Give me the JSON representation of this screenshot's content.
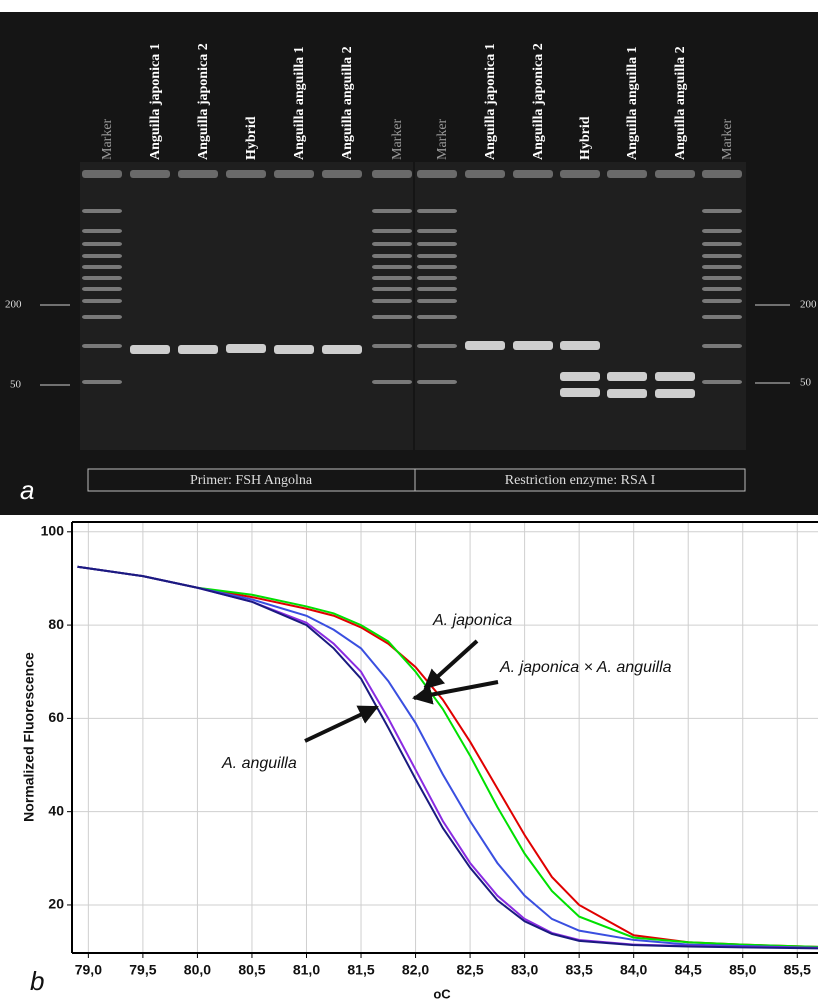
{
  "gel": {
    "lanes": [
      "Marker",
      "Anguilla japonica 1",
      "Anguilla japonica 2",
      "Hybrid",
      "Anguilla anguilla 1",
      "Anguilla anguilla 2",
      "Marker",
      "Marker",
      "Anguilla japonica 1",
      "Anguilla japonica 2",
      "Hybrid",
      "Anguilla anguilla 1",
      "Anguilla anguilla 2",
      "Marker"
    ],
    "size_labels": [
      "200",
      "50"
    ],
    "captions": [
      "Primer: FSH Angolna",
      "Restriction enzyme: RSA I"
    ],
    "panel_label": "a"
  },
  "chart_data": {
    "type": "line",
    "panel_label": "b",
    "ylabel": "Normalized Fluorescence",
    "xlabel": "oC",
    "x": [
      78.9,
      79.5,
      80.0,
      80.5,
      81.0,
      81.25,
      81.5,
      81.75,
      82.0,
      82.25,
      82.5,
      82.75,
      83.0,
      83.25,
      83.5,
      84.0,
      84.5,
      85.0,
      85.7
    ],
    "series": [
      {
        "color": "#e00000",
        "values": [
          92.5,
          90.5,
          88,
          86,
          83.5,
          82,
          79.5,
          76,
          71,
          64,
          55,
          45,
          35,
          26,
          20,
          13.5,
          12,
          11.5,
          11
        ]
      },
      {
        "color": "#00e000",
        "values": [
          92.5,
          90.5,
          88,
          86.5,
          84,
          82.5,
          80,
          76.5,
          70,
          62,
          52,
          41,
          31,
          23,
          17.5,
          13,
          12,
          11.5,
          11
        ]
      },
      {
        "color": "#3a4fe0",
        "values": [
          92.5,
          90.5,
          88,
          85.5,
          82,
          79,
          75,
          68,
          59,
          48,
          38,
          29,
          22,
          17,
          14.5,
          12.5,
          11.5,
          11.2,
          10.8
        ]
      },
      {
        "color": "#8a2be2",
        "values": [
          92.5,
          90.5,
          88,
          85,
          80.5,
          76,
          70,
          60,
          49,
          38,
          29,
          22,
          17,
          14,
          12.5,
          11.5,
          11.2,
          11,
          10.8
        ]
      },
      {
        "color": "#1a1a80",
        "values": [
          92.5,
          90.5,
          88,
          85,
          80,
          75,
          68.5,
          58,
          47,
          36.5,
          28,
          21,
          16.5,
          13.8,
          12.3,
          11.4,
          11.1,
          10.9,
          10.7
        ]
      }
    ],
    "xlim": [
      78.85,
      85.69
    ],
    "ylim": [
      9.7,
      102.1
    ],
    "xticks": [
      {
        "value": 79.0,
        "label": "79,0"
      },
      {
        "value": 79.5,
        "label": "79,5"
      },
      {
        "value": 80.0,
        "label": "80,0"
      },
      {
        "value": 80.5,
        "label": "80,5"
      },
      {
        "value": 81.0,
        "label": "81,0"
      },
      {
        "value": 81.5,
        "label": "81,5"
      },
      {
        "value": 82.0,
        "label": "82,0"
      },
      {
        "value": 82.5,
        "label": "82,5"
      },
      {
        "value": 83.0,
        "label": "83,0"
      },
      {
        "value": 83.5,
        "label": "83,5"
      },
      {
        "value": 84.0,
        "label": "84,0"
      },
      {
        "value": 84.5,
        "label": "84,5"
      },
      {
        "value": 85.0,
        "label": "85,0"
      },
      {
        "value": 85.5,
        "label": "85,5"
      }
    ],
    "yticks": [
      20,
      40,
      60,
      80,
      100
    ],
    "grid": true,
    "annotations": [
      "A. japonica",
      "A. japonica × A. anguilla",
      "A. anguilla"
    ]
  }
}
